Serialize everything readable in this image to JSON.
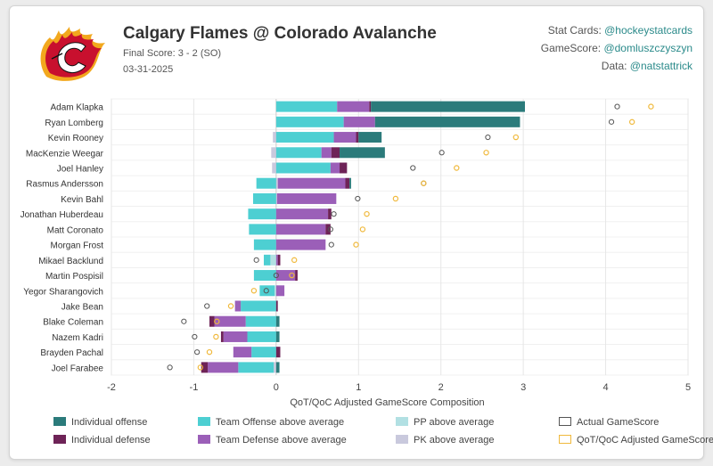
{
  "header": {
    "title": "Calgary Flames @ Colorado Avalanche",
    "final_score": "Final Score: 3 - 2 (SO)",
    "date": "03-31-2025"
  },
  "credits": [
    {
      "label": "Stat Cards: ",
      "handle": "@hockeystatcards"
    },
    {
      "label": "GameScore: ",
      "handle": "@domluszczyszyn"
    },
    {
      "label": "Data: ",
      "handle": "@natstattrick"
    }
  ],
  "colors": {
    "ind_off": "#2b7b7b",
    "ind_def": "#6e2357",
    "team_off": "#4dcfd2",
    "team_def": "#9b5fb8",
    "pp": "#b2e0e3",
    "pk": "#c9c9dd",
    "actual": "#555555",
    "adjusted": "#f0b93c"
  },
  "chart_data": {
    "type": "bar",
    "xlabel": "QoT/QoC Adjusted GameScore Composition",
    "xlim": [
      -2,
      5
    ],
    "xticks": [
      "-2",
      "-1",
      "0",
      "1",
      "2",
      "3",
      "4",
      "5"
    ],
    "grid": true,
    "categories": [
      "Adam Klapka",
      "Ryan Lomberg",
      "Kevin Rooney",
      "MacKenzie Weegar",
      "Joel Hanley",
      "Rasmus Andersson",
      "Kevin Bahl",
      "Jonathan Huberdeau",
      "Matt Coronato",
      "Morgan Frost",
      "Mikael Backlund",
      "Martin Pospisil",
      "Yegor Sharangovich",
      "Jake Bean",
      "Blake Coleman",
      "Nazem Kadri",
      "Brayden Pachal",
      "Joel Farabee"
    ],
    "series": [
      {
        "name": "Individual offense",
        "values": [
          1.87,
          1.76,
          0.28,
          0.55,
          0.0,
          0.02,
          0.0,
          0.0,
          0.0,
          0.0,
          0.0,
          0.0,
          0.0,
          0.0,
          0.04,
          0.04,
          0.0,
          0.04
        ]
      },
      {
        "name": "Individual defense",
        "values": [
          0.02,
          0.0,
          0.03,
          0.1,
          0.09,
          0.05,
          0.0,
          0.04,
          0.06,
          0.0,
          0.03,
          0.03,
          0.0,
          0.02,
          -0.06,
          -0.03,
          0.05,
          -0.08
        ]
      },
      {
        "name": "Team Offense above average",
        "values": [
          0.74,
          0.82,
          0.7,
          0.55,
          0.66,
          -0.24,
          -0.28,
          -0.34,
          -0.33,
          -0.27,
          -0.08,
          -0.27,
          -0.18,
          -0.43,
          -0.37,
          -0.35,
          -0.3,
          -0.43
        ]
      },
      {
        "name": "Team Defense above average",
        "values": [
          0.39,
          0.38,
          0.27,
          0.12,
          0.11,
          0.82,
          0.72,
          0.63,
          0.6,
          0.6,
          0.02,
          0.23,
          0.1,
          -0.07,
          -0.38,
          -0.29,
          -0.22,
          -0.37
        ]
      },
      {
        "name": "PP above average",
        "values": [
          0.0,
          0.0,
          0.0,
          0.0,
          0.0,
          0.0,
          0.0,
          0.0,
          0.0,
          0.0,
          -0.07,
          0.0,
          -0.02,
          0.0,
          0.0,
          0.0,
          0.0,
          0.0
        ]
      },
      {
        "name": "PK above average",
        "values": [
          0.0,
          0.0,
          -0.04,
          -0.06,
          -0.05,
          0.02,
          0.01,
          0.0,
          0.0,
          0.0,
          0.0,
          0.0,
          0.0,
          0.0,
          0.0,
          0.0,
          0.0,
          -0.03
        ]
      },
      {
        "name": "Actual GameScore",
        "values": [
          4.14,
          4.07,
          2.57,
          2.01,
          1.66,
          1.79,
          0.99,
          0.7,
          0.66,
          0.67,
          -0.24,
          0.0,
          -0.12,
          -0.84,
          -1.12,
          -0.99,
          -0.96,
          -1.29
        ]
      },
      {
        "name": "QoT/QoC Adjusted GameScore",
        "values": [
          4.55,
          4.32,
          2.91,
          2.55,
          2.19,
          1.79,
          1.45,
          1.1,
          1.05,
          0.97,
          0.22,
          0.19,
          -0.27,
          -0.55,
          -0.72,
          -0.73,
          -0.81,
          -0.92
        ]
      }
    ]
  },
  "legend": [
    {
      "label": "Individual offense",
      "color": "ind_off",
      "kind": "fill"
    },
    {
      "label": "Team Offense above average",
      "color": "team_off",
      "kind": "fill"
    },
    {
      "label": "PP above average",
      "color": "pp",
      "kind": "fill"
    },
    {
      "label": "Actual GameScore",
      "color": "actual",
      "kind": "outline"
    },
    {
      "label": "Individual defense",
      "color": "ind_def",
      "kind": "fill"
    },
    {
      "label": "Team Defense above average",
      "color": "team_def",
      "kind": "fill"
    },
    {
      "label": "PK above average",
      "color": "pk",
      "kind": "fill"
    },
    {
      "label": "QoT/QoC Adjusted GameScore",
      "color": "adjusted",
      "kind": "outline"
    }
  ]
}
